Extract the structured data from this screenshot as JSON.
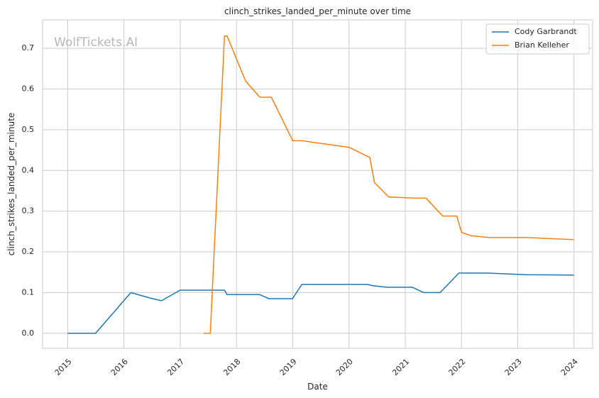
{
  "chart_data": {
    "type": "line",
    "title": "clinch_strikes_landed_per_minute over time",
    "xlabel": "Date",
    "ylabel": "clinch_strikes_landed_per_minute",
    "watermark": "WolfTickets.AI",
    "x_ticks": [
      "2015",
      "2016",
      "2017",
      "2018",
      "2019",
      "2020",
      "2021",
      "2022",
      "2023",
      "2024"
    ],
    "y_ticks": [
      "0.0",
      "0.1",
      "0.2",
      "0.3",
      "0.4",
      "0.5",
      "0.6",
      "0.7"
    ],
    "xlim": [
      "2014-07-22",
      "2024-05-01"
    ],
    "ylim": [
      -0.037,
      0.77
    ],
    "grid": true,
    "legend_position": "top-right",
    "series": [
      {
        "name": "Cody Garbrandt",
        "color": "#1f77b4",
        "x": [
          "2015-01-01",
          "2015-07-01",
          "2016-02-15",
          "2016-06-15",
          "2016-09-01",
          "2017-01-01",
          "2017-10-15",
          "2017-11-01",
          "2018-06-01",
          "2018-08-01",
          "2018-12-31",
          "2019-03-01",
          "2020-05-01",
          "2020-06-01",
          "2020-09-01",
          "2021-02-15",
          "2021-05-01",
          "2021-08-15",
          "2021-12-15",
          "2022-06-15",
          "2023-03-01",
          "2023-12-31"
        ],
        "y": [
          0.0,
          0.0,
          0.1,
          0.087,
          0.08,
          0.106,
          0.106,
          0.095,
          0.095,
          0.085,
          0.085,
          0.12,
          0.12,
          0.117,
          0.113,
          0.113,
          0.1,
          0.1,
          0.148,
          0.148,
          0.144,
          0.143
        ]
      },
      {
        "name": "Brian Kelleher",
        "color": "#ff7f0e",
        "x": [
          "2017-06-01",
          "2017-07-15",
          "2017-10-15",
          "2017-11-01",
          "2018-03-01",
          "2018-06-01",
          "2018-08-15",
          "2019-01-01",
          "2019-03-01",
          "2020-01-01",
          "2020-05-15",
          "2020-06-15",
          "2020-09-15",
          "2021-03-01",
          "2021-05-15",
          "2021-09-01",
          "2021-12-01",
          "2022-01-01",
          "2022-03-01",
          "2022-07-01",
          "2023-03-01",
          "2024-01-01"
        ],
        "y": [
          0.0,
          0.0,
          0.73,
          0.73,
          0.62,
          0.58,
          0.58,
          0.473,
          0.473,
          0.457,
          0.432,
          0.37,
          0.335,
          0.332,
          0.332,
          0.288,
          0.288,
          0.248,
          0.24,
          0.235,
          0.235,
          0.23
        ]
      }
    ]
  }
}
